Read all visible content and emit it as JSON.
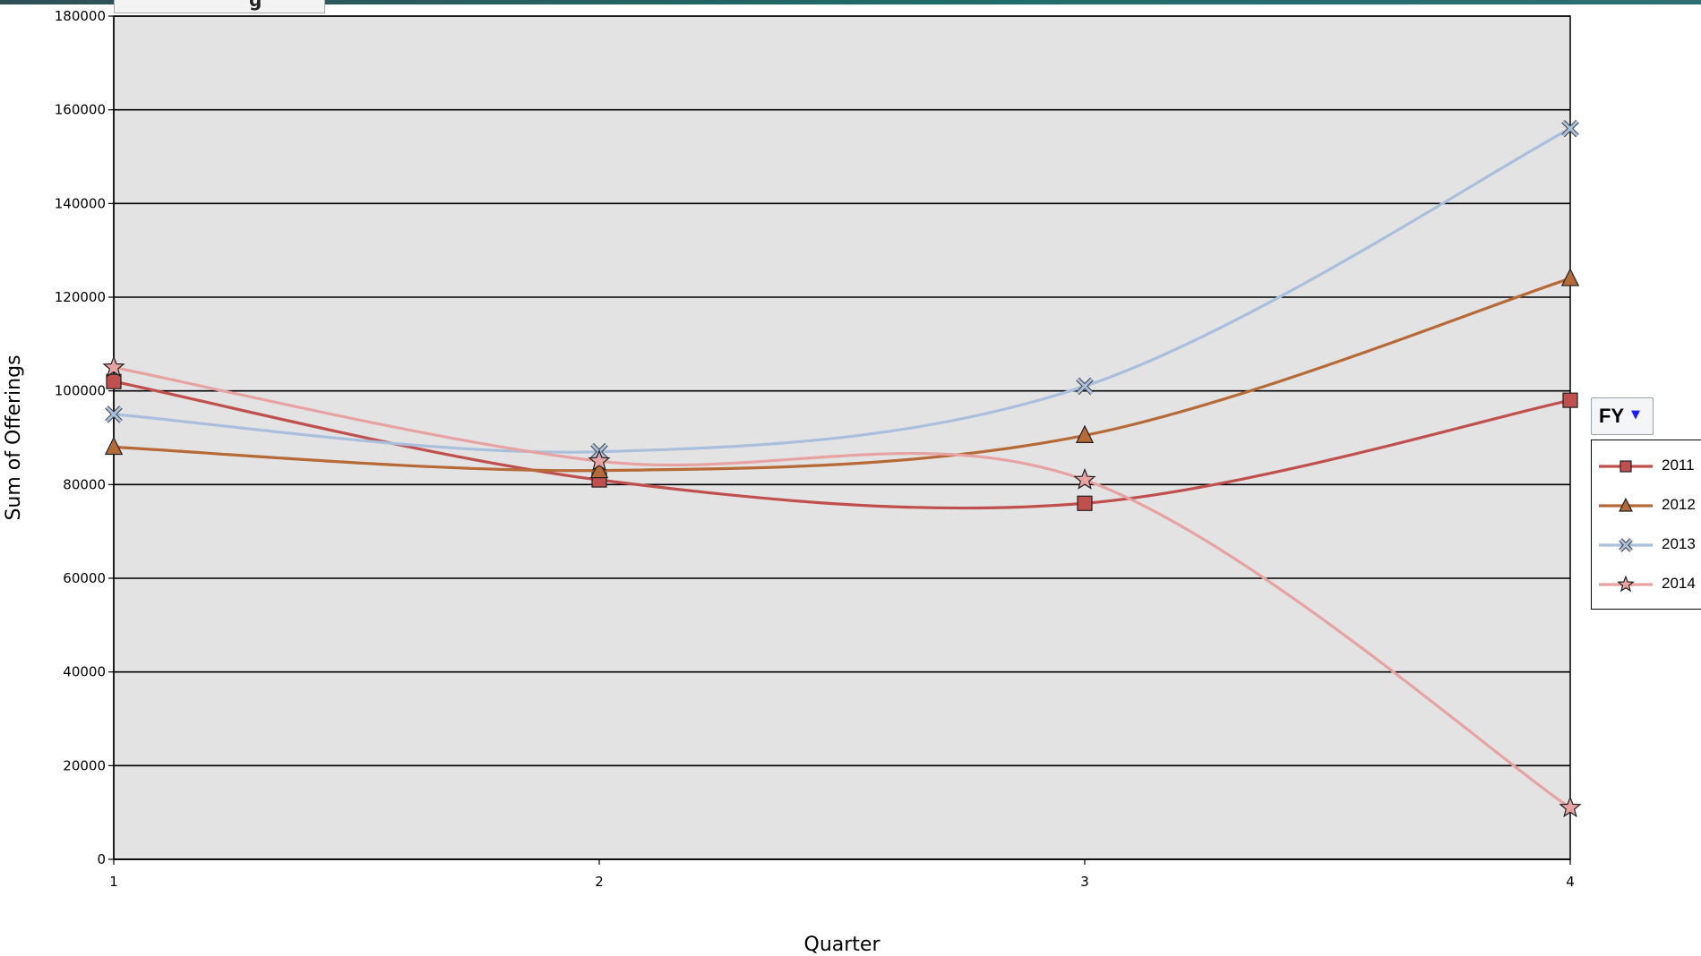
{
  "header": {
    "field_label": "g"
  },
  "chart_data": {
    "type": "line",
    "title": "",
    "xlabel": "Quarter",
    "ylabel": "Sum of Offerings",
    "categories": [
      "1",
      "2",
      "3",
      "4"
    ],
    "ylim": [
      0,
      180000
    ],
    "yticks": [
      0,
      20000,
      40000,
      60000,
      80000,
      100000,
      120000,
      140000,
      160000,
      180000
    ],
    "grid": true,
    "plot_background": "#e3e3e3",
    "legend": {
      "title": "FY",
      "placement": "right"
    },
    "series": [
      {
        "name": "2011",
        "values": [
          102000,
          81000,
          76000,
          98000
        ],
        "color": "#c0504d",
        "marker": "square"
      },
      {
        "name": "2012",
        "values": [
          88000,
          83000,
          90500,
          124000
        ],
        "color": "#b56a37",
        "marker": "triangle"
      },
      {
        "name": "2013",
        "values": [
          95000,
          87000,
          101000,
          156000
        ],
        "color": "#a9bfdc",
        "marker": "x"
      },
      {
        "name": "2014",
        "values": [
          105000,
          85000,
          81000,
          11000
        ],
        "color": "#e6a3a2",
        "marker": "star"
      }
    ]
  }
}
